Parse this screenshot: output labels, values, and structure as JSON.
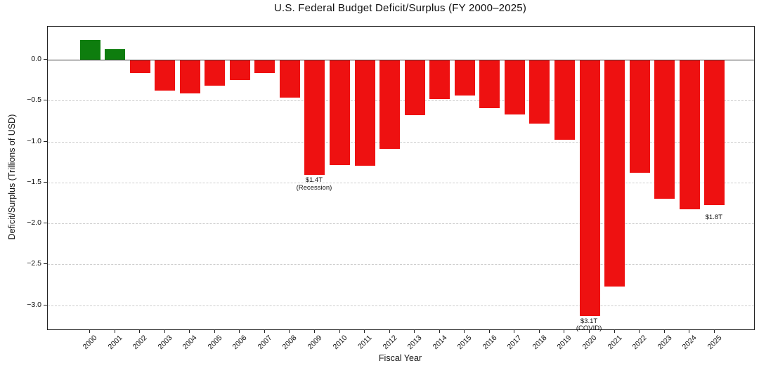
{
  "colors": {
    "surplus_green": "#0e7d0e",
    "deficit_red": "#ee1111",
    "grid_gray": "#cccccc",
    "zero_line": "#3a3a3a",
    "axis_black": "#222222",
    "text": "#111111",
    "background": "#ffffff"
  },
  "chart_data": {
    "type": "bar",
    "title": "U.S. Federal Budget Deficit/Surplus (FY 2000–2025)",
    "xlabel": "Fiscal Year",
    "ylabel": "Deficit/Surplus (Trillions of USD)",
    "categories": [
      "2000",
      "2001",
      "2002",
      "2003",
      "2004",
      "2005",
      "2006",
      "2007",
      "2008",
      "2009",
      "2010",
      "2011",
      "2012",
      "2013",
      "2014",
      "2015",
      "2016",
      "2017",
      "2018",
      "2019",
      "2020",
      "2021",
      "2022",
      "2023",
      "2024",
      "2025"
    ],
    "values": [
      0.24,
      0.13,
      -0.16,
      -0.38,
      -0.41,
      -0.32,
      -0.25,
      -0.16,
      -0.46,
      -1.41,
      -1.29,
      -1.3,
      -1.09,
      -0.68,
      -0.48,
      -0.44,
      -0.59,
      -0.67,
      -0.78,
      -0.98,
      -3.13,
      -2.77,
      -1.38,
      -1.7,
      -1.83,
      -1.78
    ],
    "ylim": [
      -3.3,
      0.4
    ],
    "yticks": [
      0.0,
      -0.5,
      -1.0,
      -1.5,
      -2.0,
      -2.5,
      -3.0
    ],
    "ytick_labels": [
      "0.0",
      "−0.5",
      "−1.0",
      "−1.5",
      "−2.0",
      "−2.5",
      "−3.0"
    ],
    "grid": "horizontal dashed at each 0.5 below zero; solid line at 0",
    "legend": "none",
    "color_rule": "green bars for surplus (positive), red bars for deficit (negative)",
    "annotations": [
      {
        "year": "2009",
        "lines": [
          "$1.4T",
          "(Recession)"
        ]
      },
      {
        "year": "2020",
        "lines": [
          "$3.1T",
          "(COVID)"
        ]
      },
      {
        "year": "2025",
        "lines": [
          "$1.8T"
        ]
      }
    ]
  }
}
